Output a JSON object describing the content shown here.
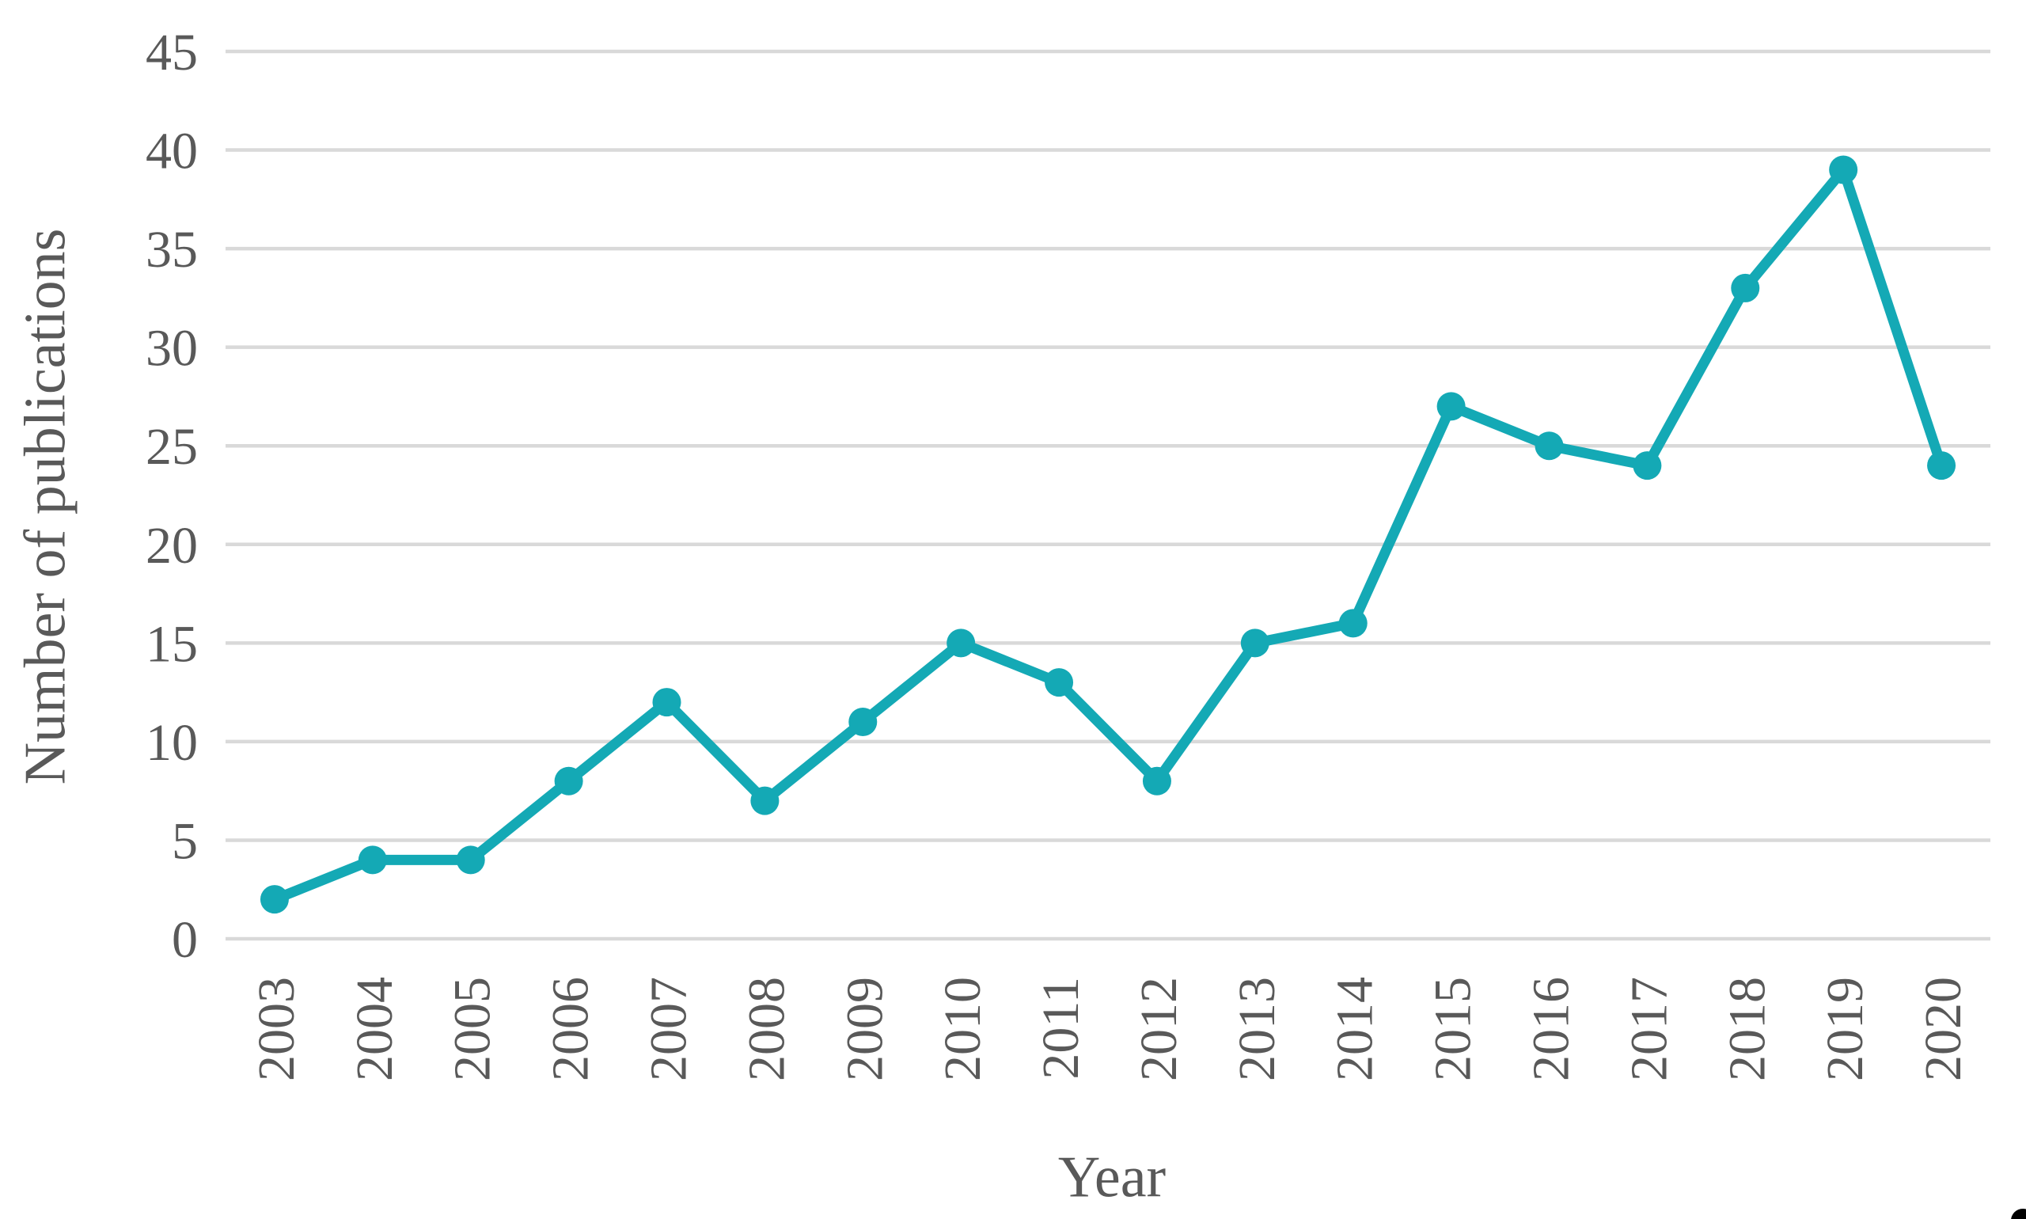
{
  "chart_data": {
    "type": "line",
    "title": "",
    "xlabel": "Year",
    "ylabel": "Number of publications",
    "categories": [
      "2003",
      "2004",
      "2005",
      "2006",
      "2007",
      "2008",
      "2009",
      "2010",
      "2011",
      "2012",
      "2013",
      "2014",
      "2015",
      "2016",
      "2017",
      "2018",
      "2019",
      "2020"
    ],
    "series": [
      {
        "name": "Number of publications",
        "values": [
          2,
          4,
          4,
          8,
          12,
          7,
          11,
          15,
          13,
          8,
          15,
          16,
          27,
          25,
          24,
          33,
          39,
          24
        ]
      }
    ],
    "ylim": [
      0,
      45
    ],
    "ytick_step": 5,
    "yticks": [
      0,
      5,
      10,
      15,
      20,
      25,
      30,
      35,
      40,
      45
    ],
    "grid": "horizontal",
    "legend_position": "none",
    "marker_style": "circle",
    "colors": {
      "line": "#14A9B5",
      "marker": "#14A9B5",
      "gridline": "#D9D9D9",
      "text": "#595959",
      "background": "#FFFFFF",
      "corner_mark": "#000000"
    }
  }
}
